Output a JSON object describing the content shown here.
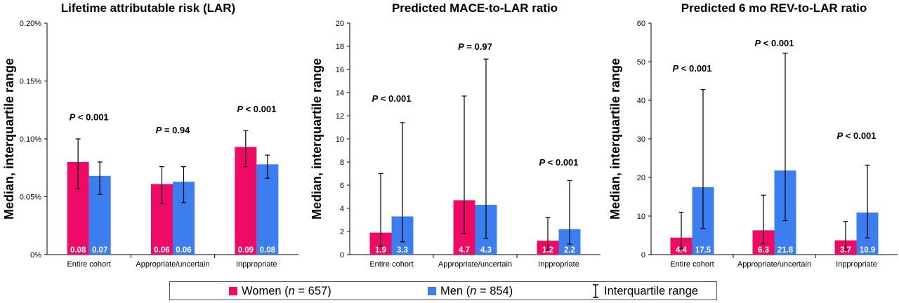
{
  "colors": {
    "women": "#ef0a66",
    "men": "#3c7df0",
    "error": "#000000"
  },
  "legend": {
    "women_label": "Women",
    "women_n": "657",
    "men_label": "Men",
    "men_n": "854",
    "iqr_label": "Interquartile range",
    "iqr_icon": "error-bar-icon"
  },
  "chart_data": [
    {
      "type": "bar",
      "title": "Lifetime attributable risk (LAR)",
      "ylabel": "Median, interquartile range",
      "xlabel": "",
      "ylim": [
        0,
        0.2
      ],
      "yticks": [
        0,
        0.05,
        0.1,
        0.15,
        0.2
      ],
      "ytick_labels": [
        "0%",
        "0.05%",
        "0.10%",
        "0.15%",
        "0.20%"
      ],
      "categories": [
        "Entire cohort",
        "Appropriate/uncertain",
        "Inppropriate"
      ],
      "series": [
        {
          "name": "Women",
          "values": [
            0.08,
            0.061,
            0.093
          ],
          "iqr_low": [
            0.057,
            0.044,
            0.076
          ],
          "iqr_high": [
            0.1,
            0.076,
            0.107
          ],
          "labels": [
            "0.08",
            "0.06",
            "0.09"
          ]
        },
        {
          "name": "Men",
          "values": [
            0.068,
            0.063,
            0.078
          ],
          "iqr_low": [
            0.052,
            0.045,
            0.066
          ],
          "iqr_high": [
            0.08,
            0.076,
            0.086
          ],
          "labels": [
            "0.07",
            "0.06",
            "0.08"
          ]
        }
      ],
      "annotations": [
        {
          "category": 0,
          "p_prefix": "P",
          "p_text": "< 0.001",
          "y": 0.116
        },
        {
          "category": 1,
          "p_prefix": "P",
          "p_text": "= 0.94",
          "y": 0.105
        },
        {
          "category": 2,
          "p_prefix": "P",
          "p_text": "< 0.001",
          "y": 0.123
        }
      ]
    },
    {
      "type": "bar",
      "title": "Predicted MACE-to-LAR ratio",
      "ylabel": "Median, interquartile range",
      "xlabel": "",
      "ylim": [
        0,
        20
      ],
      "yticks": [
        0,
        2,
        4,
        6,
        8,
        10,
        12,
        14,
        16,
        18,
        20
      ],
      "ytick_labels": [
        "0",
        "2",
        "4",
        "6",
        "8",
        "10",
        "12",
        "14",
        "16",
        "18",
        "20"
      ],
      "categories": [
        "Entire cohort",
        "Appropriate/uncertain",
        "Inppropriate"
      ],
      "series": [
        {
          "name": "Women",
          "values": [
            1.9,
            4.7,
            1.2
          ],
          "iqr_low": [
            0.7,
            1.8,
            0.4
          ],
          "iqr_high": [
            7.0,
            13.7,
            3.2
          ],
          "labels": [
            "1.9",
            "4.7",
            "1.2"
          ]
        },
        {
          "name": "Men",
          "values": [
            3.3,
            4.3,
            2.2
          ],
          "iqr_low": [
            1.1,
            1.4,
            0.9
          ],
          "iqr_high": [
            11.4,
            16.9,
            6.4
          ],
          "labels": [
            "3.3",
            "4.3",
            "2.2"
          ]
        }
      ],
      "annotations": [
        {
          "category": 0,
          "p_prefix": "P",
          "p_text": "< 0.001",
          "y": 13.2
        },
        {
          "category": 1,
          "p_prefix": "P",
          "p_text": "= 0.97",
          "y": 17.7
        },
        {
          "category": 2,
          "p_prefix": "P",
          "p_text": "< 0.001",
          "y": 7.7
        }
      ]
    },
    {
      "type": "bar",
      "title": "Predicted 6 mo REV-to-LAR ratio",
      "ylabel": "Median, interquartile range",
      "xlabel": "",
      "ylim": [
        0,
        60
      ],
      "yticks": [
        0,
        10,
        20,
        30,
        40,
        50,
        60
      ],
      "ytick_labels": [
        "0",
        "10",
        "20",
        "30",
        "40",
        "50",
        "60"
      ],
      "categories": [
        "Entire cohort",
        "Appropriate/uncertain",
        "Inppropriate"
      ],
      "series": [
        {
          "name": "Women",
          "values": [
            4.4,
            6.3,
            3.7
          ],
          "iqr_low": [
            1.6,
            2.8,
            1.3
          ],
          "iqr_high": [
            11.0,
            15.4,
            8.6
          ],
          "labels": [
            "4.4",
            "6.3",
            "3.7"
          ]
        },
        {
          "name": "Men",
          "values": [
            17.5,
            21.8,
            10.9
          ],
          "iqr_low": [
            6.8,
            8.8,
            4.3
          ],
          "iqr_high": [
            42.8,
            52.2,
            23.2
          ],
          "labels": [
            "17.5",
            "21.8",
            "10.9"
          ]
        }
      ],
      "annotations": [
        {
          "category": 0,
          "p_prefix": "P",
          "p_text": "< 0.001",
          "y": 47.5
        },
        {
          "category": 1,
          "p_prefix": "P",
          "p_text": "< 0.001",
          "y": 54.0
        },
        {
          "category": 2,
          "p_prefix": "P",
          "p_text": "< 0.001",
          "y": 30.0
        }
      ]
    }
  ]
}
